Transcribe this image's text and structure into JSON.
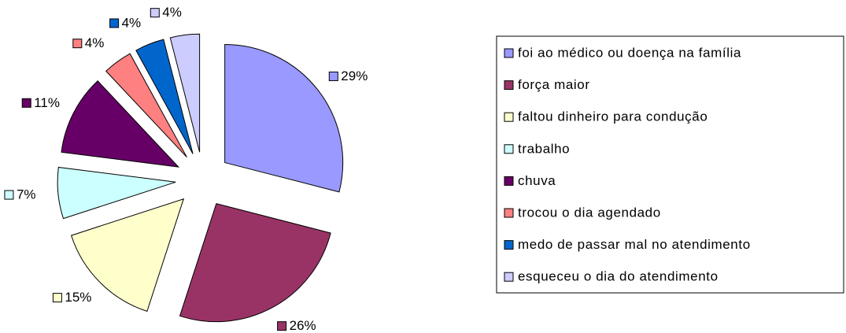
{
  "chart_data": {
    "type": "pie",
    "categories": [
      "foi ao médico ou doença na família",
      "força maior",
      "faltou dinheiro para condução",
      "trabalho",
      "chuva",
      "trocou o dia agendado",
      "medo de passar mal no atendimento",
      "esqueceu o dia do atendimento"
    ],
    "values": [
      29,
      26,
      15,
      7,
      11,
      4,
      4,
      4
    ],
    "value_labels": [
      "29%",
      "26%",
      "15%",
      "7%",
      "11%",
      "4%",
      "4%",
      "4%"
    ],
    "colors": [
      "#9999ff",
      "#993366",
      "#ffffcc",
      "#ccffff",
      "#660066",
      "#ff8080",
      "#0066cc",
      "#ccccff"
    ],
    "legend": "right"
  }
}
